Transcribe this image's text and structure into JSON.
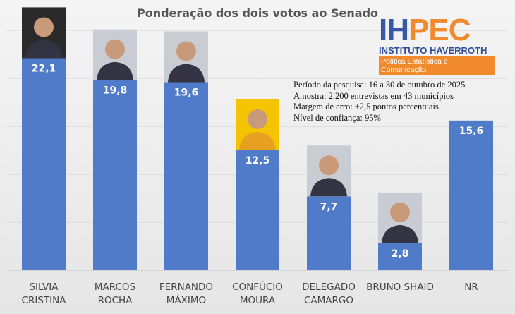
{
  "chart_data": {
    "type": "bar",
    "title": "Ponderação dos dois votos ao Senado",
    "categories": [
      "SILVIA\nCRISTINA",
      "MARCOS\nROCHA",
      "FERNANDO\nMÁXIMO",
      "CONFÚCIO\nMOURA",
      "DELEGADO\nCAMARGO",
      "BRUNO  SHAID",
      "NR"
    ],
    "values": [
      22.1,
      19.8,
      19.6,
      12.5,
      7.7,
      2.8,
      15.6
    ],
    "value_labels": [
      "22,1",
      "19,8",
      "19,6",
      "12,5",
      "7,7",
      "2,8",
      "15,6"
    ],
    "ylim": [
      0,
      25
    ],
    "grid": true,
    "bar_color": "#4f7bc8",
    "candidate_photos": [
      true,
      true,
      true,
      true,
      true,
      true,
      false
    ]
  },
  "logo": {
    "mark_left": "IH",
    "mark_right": "PEC",
    "name": "INSTITUTO HAVERROTH",
    "tagline": "Política Estatística e Comunicação"
  },
  "info": [
    "Período da pesquisa: 16 a 30 de outubro de 2025",
    "Amostra: 2.200 entrevistas em 43 municípios",
    "Margem de erro: ±2,5 pontos percentuais",
    "Nível de confiança: 95%"
  ]
}
